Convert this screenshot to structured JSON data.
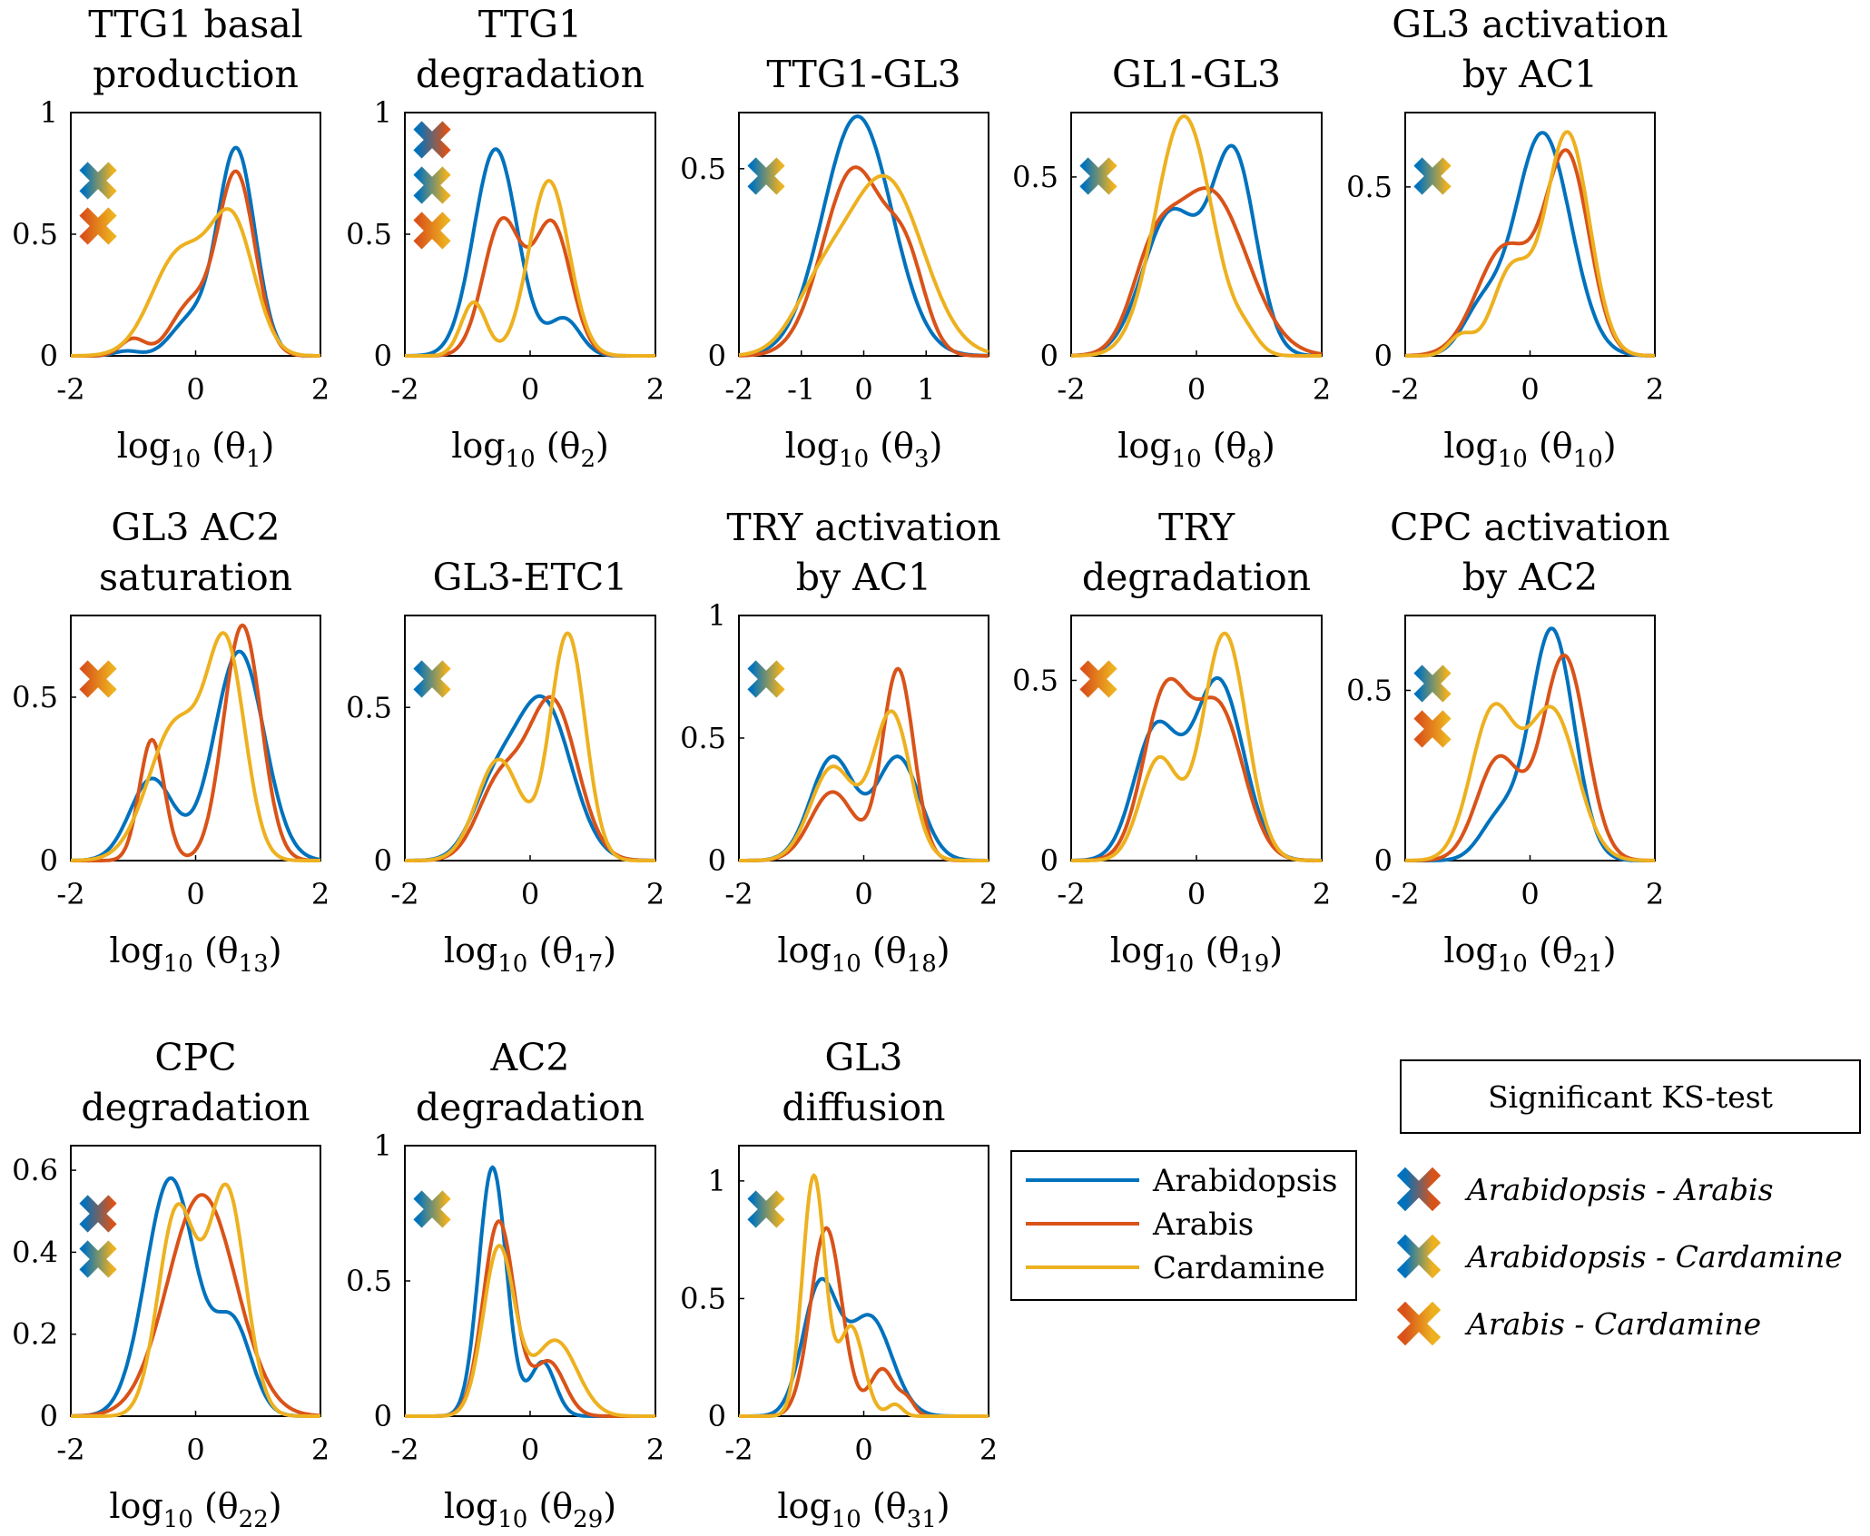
{
  "colors": {
    "Arabidopsis": "#0072BD",
    "Arabis": "#D95319",
    "Cardamine": "#EDB120"
  },
  "legend": {
    "series": [
      "Arabidopsis",
      "Arabis",
      "Cardamine"
    ]
  },
  "ks_legend": {
    "title": "Significant KS-test",
    "items": [
      {
        "pair": "AA",
        "label": "Arabidopsis - Arabis",
        "from": "Arabidopsis",
        "to": "Arabis"
      },
      {
        "pair": "AC",
        "label": "Arabidopsis - Cardamine",
        "from": "Arabidopsis",
        "to": "Cardamine"
      },
      {
        "pair": "RC",
        "label": "Arabis - Cardamine",
        "from": "Arabis",
        "to": "Cardamine"
      }
    ]
  },
  "chart_data": [
    {
      "id": "p1",
      "type": "line",
      "title": [
        "TTG1 basal",
        "production"
      ],
      "xlabel_sub": "1",
      "xlim": [
        -2,
        2
      ],
      "ylim": [
        0,
        1
      ],
      "xticks": [
        -2,
        0,
        2
      ],
      "yticks": [
        0,
        0.5,
        1
      ],
      "ytick_labels": [
        "0",
        "0.5",
        "1"
      ],
      "ks": [
        "AC",
        "RC"
      ],
      "series": [
        {
          "name": "Arabidopsis",
          "components": [
            [
              0.65,
              0.3,
              0.85
            ],
            [
              -0.1,
              0.3,
              0.14
            ],
            [
              -1.1,
              0.2,
              0.02
            ]
          ]
        },
        {
          "name": "Arabis",
          "components": [
            [
              0.65,
              0.3,
              0.75
            ],
            [
              -0.1,
              0.3,
              0.2
            ],
            [
              -1.0,
              0.2,
              0.07
            ]
          ]
        },
        {
          "name": "Cardamine",
          "components": [
            [
              0.6,
              0.35,
              0.52
            ],
            [
              -0.25,
              0.45,
              0.42
            ]
          ]
        }
      ]
    },
    {
      "id": "p2",
      "type": "line",
      "title": [
        "TTG1",
        "degradation"
      ],
      "xlabel_sub": "2",
      "xlim": [
        -2,
        2
      ],
      "ylim": [
        0,
        1
      ],
      "xticks": [
        -2,
        0,
        2
      ],
      "yticks": [
        0,
        0.5,
        1
      ],
      "ytick_labels": [
        "0",
        "0.5",
        "1"
      ],
      "ks": [
        "AA",
        "AC",
        "RC"
      ],
      "series": [
        {
          "name": "Arabidopsis",
          "components": [
            [
              -0.55,
              0.35,
              0.85
            ],
            [
              0.55,
              0.25,
              0.15
            ]
          ]
        },
        {
          "name": "Arabis",
          "components": [
            [
              -0.45,
              0.3,
              0.55
            ],
            [
              0.35,
              0.3,
              0.54
            ]
          ]
        },
        {
          "name": "Cardamine",
          "components": [
            [
              -0.9,
              0.2,
              0.22
            ],
            [
              0.3,
              0.32,
              0.72
            ]
          ]
        }
      ]
    },
    {
      "id": "p3",
      "type": "line",
      "title": [
        "",
        "TTG1-GL3"
      ],
      "xlabel_sub": "3",
      "xlim": [
        -2,
        2
      ],
      "ylim": [
        0,
        0.65
      ],
      "xticks": [
        -2,
        -1,
        0,
        1
      ],
      "yticks": [
        0,
        0.5
      ],
      "ytick_labels": [
        "0",
        "0.5"
      ],
      "ks": [
        "AC"
      ],
      "series": [
        {
          "name": "Arabidopsis",
          "components": [
            [
              -0.1,
              0.55,
              0.64
            ]
          ]
        },
        {
          "name": "Arabis",
          "components": [
            [
              -0.15,
              0.5,
              0.5
            ],
            [
              0.7,
              0.3,
              0.2
            ]
          ]
        },
        {
          "name": "Cardamine",
          "components": [
            [
              0.35,
              0.6,
              0.47
            ],
            [
              -0.7,
              0.45,
              0.15
            ]
          ]
        }
      ]
    },
    {
      "id": "p8",
      "type": "line",
      "title": [
        "",
        "GL1-GL3"
      ],
      "xlabel_sub": "8",
      "xlim": [
        -2,
        2
      ],
      "ylim": [
        0,
        0.68
      ],
      "xticks": [
        -2,
        0,
        2
      ],
      "yticks": [
        0,
        0.5
      ],
      "ytick_labels": [
        "0",
        "0.5"
      ],
      "ks": [
        "AC"
      ],
      "series": [
        {
          "name": "Arabidopsis",
          "components": [
            [
              0.6,
              0.35,
              0.55
            ],
            [
              -0.4,
              0.45,
              0.4
            ]
          ]
        },
        {
          "name": "Arabis",
          "components": [
            [
              0.2,
              0.6,
              0.46
            ],
            [
              -0.7,
              0.35,
              0.2
            ]
          ]
        },
        {
          "name": "Cardamine",
          "components": [
            [
              -0.2,
              0.45,
              0.67
            ],
            [
              0.8,
              0.2,
              0.04
            ]
          ]
        }
      ]
    },
    {
      "id": "p10",
      "type": "line",
      "title": [
        "GL3 activation",
        "by AC1"
      ],
      "xlabel_sub": "10",
      "xlim": [
        -2,
        2
      ],
      "ylim": [
        0,
        0.72
      ],
      "xticks": [
        -2,
        0,
        2
      ],
      "yticks": [
        0,
        0.5
      ],
      "ytick_labels": [
        "0",
        "0.5"
      ],
      "ks": [
        "AC"
      ],
      "series": [
        {
          "name": "Arabidopsis",
          "components": [
            [
              0.2,
              0.45,
              0.66
            ],
            [
              -0.8,
              0.3,
              0.12
            ]
          ]
        },
        {
          "name": "Arabis",
          "components": [
            [
              0.6,
              0.35,
              0.58
            ],
            [
              -0.4,
              0.45,
              0.32
            ]
          ]
        },
        {
          "name": "Cardamine",
          "components": [
            [
              0.6,
              0.35,
              0.66
            ],
            [
              -0.3,
              0.3,
              0.25
            ],
            [
              -1.1,
              0.2,
              0.06
            ]
          ]
        }
      ]
    },
    {
      "id": "p13",
      "type": "line",
      "title": [
        "GL3 AC2",
        "saturation"
      ],
      "xlabel_sub": "13",
      "xlim": [
        -2,
        2
      ],
      "ylim": [
        0,
        0.75
      ],
      "xticks": [
        -2,
        0,
        2
      ],
      "yticks": [
        0,
        0.5
      ],
      "ytick_labels": [
        "0",
        "0.5"
      ],
      "ks": [
        "RC"
      ],
      "series": [
        {
          "name": "Arabidopsis",
          "components": [
            [
              0.7,
              0.4,
              0.64
            ],
            [
              -0.7,
              0.35,
              0.25
            ]
          ]
        },
        {
          "name": "Arabis",
          "components": [
            [
              0.75,
              0.3,
              0.72
            ],
            [
              -0.7,
              0.2,
              0.37
            ]
          ]
        },
        {
          "name": "Cardamine",
          "components": [
            [
              0.5,
              0.3,
              0.6
            ],
            [
              -0.3,
              0.45,
              0.42
            ]
          ]
        }
      ]
    },
    {
      "id": "p17",
      "type": "line",
      "title": [
        "",
        "GL3-ETC1"
      ],
      "xlabel_sub": "17",
      "xlim": [
        -2,
        2
      ],
      "ylim": [
        0,
        0.8
      ],
      "xticks": [
        -2,
        0,
        2
      ],
      "yticks": [
        0,
        0.5
      ],
      "ytick_labels": [
        "0",
        "0.5"
      ],
      "ks": [
        "AC"
      ],
      "series": [
        {
          "name": "Arabidopsis",
          "components": [
            [
              0.2,
              0.45,
              0.52
            ],
            [
              -0.6,
              0.35,
              0.2
            ]
          ]
        },
        {
          "name": "Arabis",
          "components": [
            [
              0.35,
              0.4,
              0.52
            ],
            [
              -0.5,
              0.35,
              0.24
            ]
          ]
        },
        {
          "name": "Cardamine",
          "components": [
            [
              0.6,
              0.28,
              0.74
            ],
            [
              -0.5,
              0.35,
              0.33
            ]
          ]
        }
      ]
    },
    {
      "id": "p18",
      "type": "line",
      "title": [
        "TRY activation",
        "by AC1"
      ],
      "xlabel_sub": "18",
      "xlim": [
        -2,
        2
      ],
      "ylim": [
        0,
        1
      ],
      "xticks": [
        -2,
        0,
        2
      ],
      "yticks": [
        0,
        0.5,
        1
      ],
      "ytick_labels": [
        "0",
        "0.5",
        "1"
      ],
      "ks": [
        "AC"
      ],
      "series": [
        {
          "name": "Arabidopsis",
          "components": [
            [
              -0.5,
              0.35,
              0.42
            ],
            [
              0.55,
              0.35,
              0.42
            ]
          ]
        },
        {
          "name": "Arabis",
          "components": [
            [
              0.55,
              0.25,
              0.78
            ],
            [
              -0.5,
              0.35,
              0.28
            ]
          ]
        },
        {
          "name": "Cardamine",
          "components": [
            [
              0.45,
              0.3,
              0.6
            ],
            [
              -0.5,
              0.35,
              0.38
            ]
          ]
        }
      ]
    },
    {
      "id": "p19",
      "type": "line",
      "title": [
        "TRY",
        "degradation"
      ],
      "xlabel_sub": "19",
      "xlim": [
        -2,
        2
      ],
      "ylim": [
        0,
        0.68
      ],
      "xticks": [
        -2,
        0,
        2
      ],
      "yticks": [
        0,
        0.5
      ],
      "ytick_labels": [
        "0",
        "0.5"
      ],
      "ks": [
        "RC"
      ],
      "series": [
        {
          "name": "Arabidopsis",
          "components": [
            [
              0.35,
              0.4,
              0.5
            ],
            [
              -0.65,
              0.35,
              0.36
            ]
          ]
        },
        {
          "name": "Arabis",
          "components": [
            [
              -0.5,
              0.35,
              0.45
            ],
            [
              0.35,
              0.4,
              0.42
            ]
          ]
        },
        {
          "name": "Cardamine",
          "components": [
            [
              0.45,
              0.35,
              0.63
            ],
            [
              -0.6,
              0.3,
              0.28
            ]
          ]
        }
      ]
    },
    {
      "id": "p21",
      "type": "line",
      "title": [
        "CPC activation",
        "by AC2"
      ],
      "xlabel_sub": "21",
      "xlim": [
        -2,
        2
      ],
      "ylim": [
        0,
        0.72
      ],
      "xticks": [
        -2,
        0,
        2
      ],
      "yticks": [
        0,
        0.5
      ],
      "ytick_labels": [
        "0",
        "0.5"
      ],
      "ks": [
        "AC",
        "RC"
      ],
      "series": [
        {
          "name": "Arabidopsis",
          "components": [
            [
              0.35,
              0.35,
              0.68
            ],
            [
              -0.5,
              0.3,
              0.12
            ]
          ]
        },
        {
          "name": "Arabis",
          "components": [
            [
              0.55,
              0.35,
              0.6
            ],
            [
              -0.5,
              0.35,
              0.3
            ]
          ]
        },
        {
          "name": "Cardamine",
          "components": [
            [
              -0.6,
              0.35,
              0.43
            ],
            [
              0.35,
              0.4,
              0.44
            ]
          ]
        }
      ]
    },
    {
      "id": "p22",
      "type": "line",
      "title": [
        "CPC",
        "degradation"
      ],
      "xlabel_sub": "22",
      "xlim": [
        -2,
        2
      ],
      "ylim": [
        0,
        0.66
      ],
      "xticks": [
        -2,
        0,
        2
      ],
      "yticks": [
        0,
        0.2,
        0.4,
        0.6
      ],
      "ytick_labels": [
        "0",
        "0.2",
        "0.4",
        "0.6"
      ],
      "ks": [
        "AA",
        "AC"
      ],
      "series": [
        {
          "name": "Arabidopsis",
          "components": [
            [
              -0.4,
              0.4,
              0.58
            ],
            [
              0.6,
              0.3,
              0.22
            ]
          ]
        },
        {
          "name": "Arabis",
          "components": [
            [
              0.1,
              0.55,
              0.54
            ]
          ]
        },
        {
          "name": "Cardamine",
          "components": [
            [
              -0.3,
              0.3,
              0.5
            ],
            [
              0.5,
              0.3,
              0.55
            ]
          ]
        }
      ]
    },
    {
      "id": "p29",
      "type": "line",
      "title": [
        "AC2",
        "degradation"
      ],
      "xlabel_sub": "29",
      "xlim": [
        -2,
        2
      ],
      "ylim": [
        0,
        1
      ],
      "xticks": [
        -2,
        0,
        2
      ],
      "yticks": [
        0,
        0.5,
        1
      ],
      "ytick_labels": [
        "0",
        "0.5",
        "1"
      ],
      "ks": [
        "AC"
      ],
      "series": [
        {
          "name": "Arabidopsis",
          "components": [
            [
              -0.6,
              0.22,
              0.92
            ],
            [
              0.2,
              0.2,
              0.2
            ]
          ]
        },
        {
          "name": "Arabis",
          "components": [
            [
              -0.5,
              0.25,
              0.72
            ],
            [
              0.3,
              0.25,
              0.2
            ]
          ]
        },
        {
          "name": "Cardamine",
          "components": [
            [
              -0.5,
              0.25,
              0.62
            ],
            [
              0.4,
              0.35,
              0.28
            ]
          ]
        }
      ]
    },
    {
      "id": "p31",
      "type": "line",
      "title": [
        "GL3",
        "diffusion"
      ],
      "xlabel_sub": "31",
      "xlim": [
        -2,
        2
      ],
      "ylim": [
        0,
        1.15
      ],
      "xticks": [
        -2,
        0,
        2
      ],
      "yticks": [
        0,
        0.5,
        1
      ],
      "ytick_labels": [
        "0",
        "0.5",
        "1"
      ],
      "ks": [
        "AC"
      ],
      "series": [
        {
          "name": "Arabidopsis",
          "components": [
            [
              -0.7,
              0.28,
              0.55
            ],
            [
              0.1,
              0.35,
              0.42
            ]
          ]
        },
        {
          "name": "Arabis",
          "components": [
            [
              -0.6,
              0.25,
              0.8
            ],
            [
              0.3,
              0.2,
              0.2
            ],
            [
              0.7,
              0.12,
              0.06
            ]
          ]
        },
        {
          "name": "Cardamine",
          "components": [
            [
              -0.8,
              0.18,
              1.02
            ],
            [
              -0.2,
              0.2,
              0.38
            ],
            [
              0.5,
              0.12,
              0.05
            ]
          ]
        }
      ]
    }
  ]
}
